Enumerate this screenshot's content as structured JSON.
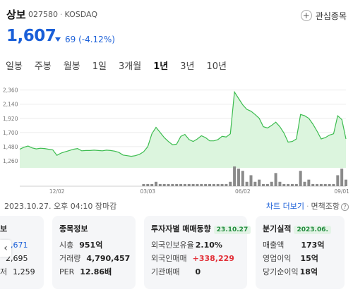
{
  "stock": {
    "name": "상보",
    "code": "027580",
    "market": "KOSDAQ",
    "price": "1,607",
    "change": "69 (-4.12%)",
    "watch_label": "관심종목"
  },
  "tabs": [
    {
      "label": "일봉",
      "active": false
    },
    {
      "label": "주봉",
      "active": false
    },
    {
      "label": "월봉",
      "active": false
    },
    {
      "label": "1일",
      "active": false
    },
    {
      "label": "3개월",
      "active": false
    },
    {
      "label": "1년",
      "active": true
    },
    {
      "label": "3년",
      "active": false
    },
    {
      "label": "10년",
      "active": false
    }
  ],
  "colors": {
    "down": "#1a5fd8",
    "up": "#e2313a",
    "line": "#3cbc4f",
    "area": "#dcf5de",
    "volume": "#8a8a8a"
  },
  "chart_data": {
    "type": "area",
    "y_ticks": [
      "2,360",
      "2,140",
      "1,920",
      "1,700",
      "1,480",
      "1,260"
    ],
    "ylim": [
      1150,
      2400
    ],
    "x_labels": [
      {
        "label": "12/02",
        "index": 9
      },
      {
        "label": "03/03",
        "index": 31
      },
      {
        "label": "06/02",
        "index": 54
      },
      {
        "label": "09/01",
        "index": 78
      }
    ],
    "values": [
      1440,
      1470,
      1490,
      1460,
      1445,
      1455,
      1450,
      1440,
      1430,
      1345,
      1380,
      1400,
      1420,
      1440,
      1450,
      1415,
      1420,
      1420,
      1425,
      1420,
      1415,
      1425,
      1420,
      1410,
      1390,
      1350,
      1340,
      1330,
      1340,
      1360,
      1400,
      1480,
      1680,
      1780,
      1700,
      1620,
      1560,
      1510,
      1520,
      1640,
      1670,
      1590,
      1560,
      1600,
      1650,
      1620,
      1570,
      1570,
      1590,
      1640,
      1630,
      1680,
      2330,
      2230,
      2130,
      2060,
      2030,
      1980,
      1920,
      1790,
      1770,
      1810,
      1860,
      1790,
      1690,
      1550,
      1560,
      1600,
      1980,
      1960,
      1920,
      1830,
      1720,
      1600,
      1620,
      1660,
      1680,
      1960,
      1900,
      1600
    ],
    "volume": [
      0,
      0,
      0,
      0,
      0,
      0,
      0,
      0,
      0,
      0,
      0,
      0,
      0,
      0,
      0,
      0,
      0,
      0,
      0,
      0,
      0,
      0,
      0,
      0,
      0,
      0,
      0,
      0,
      0,
      0,
      1,
      1,
      1,
      2,
      1,
      1,
      1,
      1,
      1,
      1,
      1,
      1,
      1,
      1,
      1,
      1,
      1,
      1,
      1,
      1,
      1,
      2,
      9,
      8,
      7,
      2,
      5,
      2,
      3,
      1,
      1,
      2,
      6,
      2,
      1,
      1,
      1,
      1,
      7,
      2,
      3,
      1,
      1,
      1,
      1,
      1,
      1,
      5,
      8,
      3
    ]
  },
  "info": {
    "date": "2023.10.27. 오후 04:10 장마감",
    "chart_more": "차트 더보기",
    "disclaimer": "면책조항"
  },
  "cards": {
    "price_card": {
      "title": "보",
      "rows": [
        {
          "k": "",
          "v": "1,671",
          "style": "blue"
        },
        {
          "k": "",
          "v": "2,695",
          "style": ""
        },
        {
          "k": "저",
          "v": "1,259",
          "style": ""
        }
      ]
    },
    "stock_info": {
      "title": "종목정보",
      "rows": [
        {
          "k": "시총",
          "v": "951억"
        },
        {
          "k": "거래량",
          "v": "4,790,457"
        },
        {
          "k": "PER",
          "v": "12.86배"
        }
      ]
    },
    "investor": {
      "title": "투자자별 매매동향",
      "badge": "23.10.27",
      "rows": [
        {
          "k": "외국인보유율",
          "v": "2.10%%",
          "style": ""
        },
        {
          "k": "외국인매매",
          "v": "+338,229",
          "style": "red"
        },
        {
          "k": "기관매매",
          "v": "0",
          "style": ""
        }
      ]
    },
    "quarter": {
      "title": "분기실적",
      "badge": "2023.06.",
      "rows": [
        {
          "k": "매출액",
          "v": "173억"
        },
        {
          "k": "영업이익",
          "v": "15억"
        },
        {
          "k": "당기순이익",
          "v": "18억"
        }
      ]
    }
  }
}
